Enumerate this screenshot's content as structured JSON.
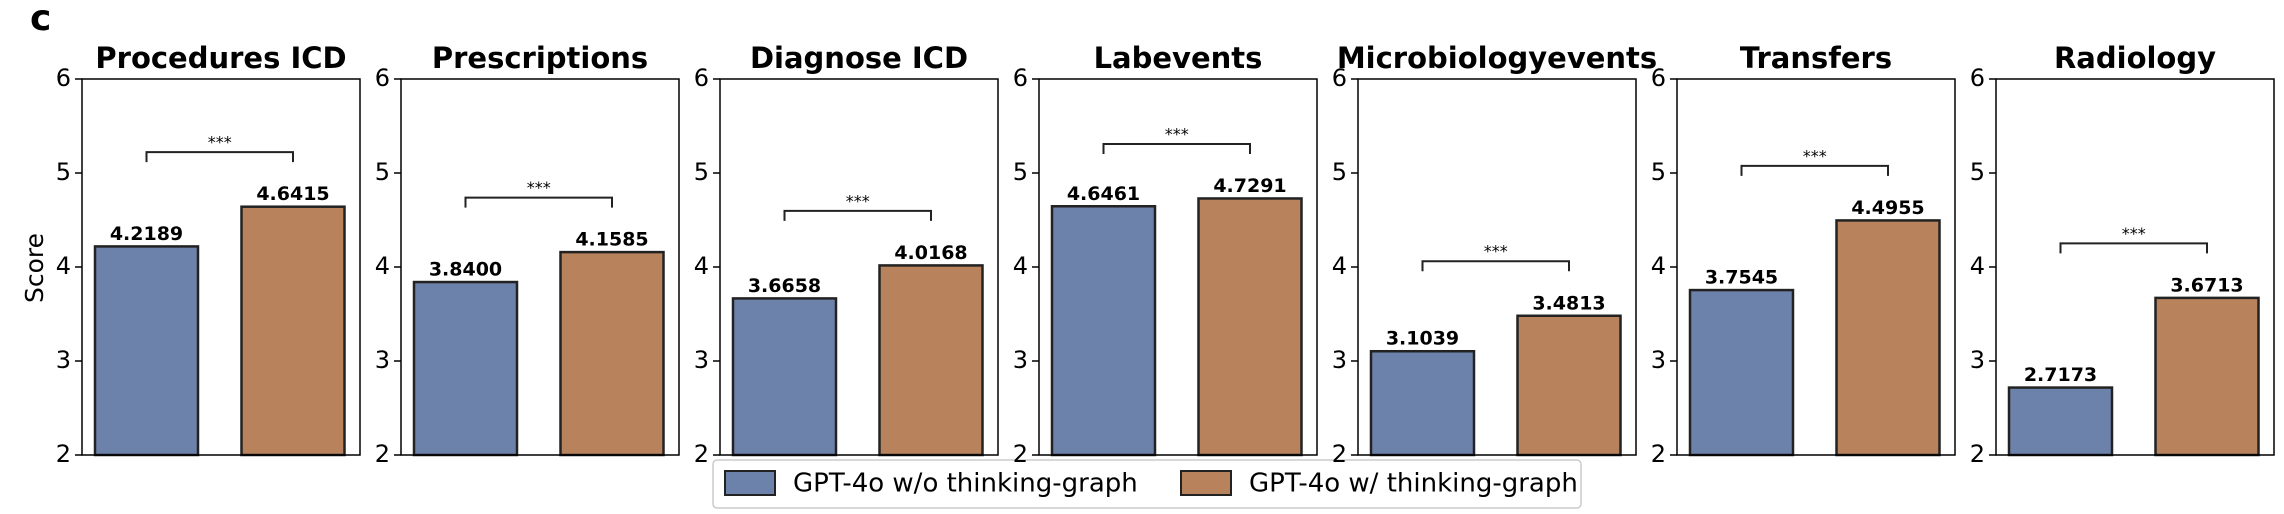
{
  "panel_label": "c",
  "ylabel": "Score",
  "legend": [
    {
      "name": "GPT-4o w/o thinking-graph",
      "color": "#6d82aa"
    },
    {
      "name": "GPT-4o w/ thinking-graph",
      "color": "#b7825c"
    }
  ],
  "chart_data": [
    {
      "type": "bar",
      "title": "Procedures ICD",
      "values": [
        4.2189,
        4.6415
      ],
      "value_labels": [
        "4.2189",
        "4.6415"
      ],
      "ylim": [
        2,
        6
      ],
      "yticks": [
        2,
        3,
        4,
        5,
        6
      ],
      "significance": "***"
    },
    {
      "type": "bar",
      "title": "Prescriptions",
      "values": [
        3.84,
        4.1585
      ],
      "value_labels": [
        "3.8400",
        "4.1585"
      ],
      "ylim": [
        2,
        6
      ],
      "yticks": [
        2,
        3,
        4,
        5,
        6
      ],
      "significance": "***"
    },
    {
      "type": "bar",
      "title": "Diagnose ICD",
      "values": [
        3.6658,
        4.0168
      ],
      "value_labels": [
        "3.6658",
        "4.0168"
      ],
      "ylim": [
        2,
        6
      ],
      "yticks": [
        2,
        3,
        4,
        5,
        6
      ],
      "significance": "***"
    },
    {
      "type": "bar",
      "title": "Labevents",
      "values": [
        4.6461,
        4.7291
      ],
      "value_labels": [
        "4.6461",
        "4.7291"
      ],
      "ylim": [
        2,
        6
      ],
      "yticks": [
        2,
        3,
        4,
        5,
        6
      ],
      "significance": "***"
    },
    {
      "type": "bar",
      "title": "Microbiologyevents",
      "values": [
        3.1039,
        3.4813
      ],
      "value_labels": [
        "3.1039",
        "3.4813"
      ],
      "ylim": [
        2,
        6
      ],
      "yticks": [
        2,
        3,
        4,
        5,
        6
      ],
      "significance": "***"
    },
    {
      "type": "bar",
      "title": "Transfers",
      "values": [
        3.7545,
        4.4955
      ],
      "value_labels": [
        "3.7545",
        "4.4955"
      ],
      "ylim": [
        2,
        6
      ],
      "yticks": [
        2,
        3,
        4,
        5,
        6
      ],
      "significance": "***"
    },
    {
      "type": "bar",
      "title": "Radiology",
      "values": [
        2.7173,
        3.6713
      ],
      "value_labels": [
        "2.7173",
        "3.6713"
      ],
      "ylim": [
        2,
        6
      ],
      "yticks": [
        2,
        3,
        4,
        5,
        6
      ],
      "significance": "***"
    }
  ]
}
